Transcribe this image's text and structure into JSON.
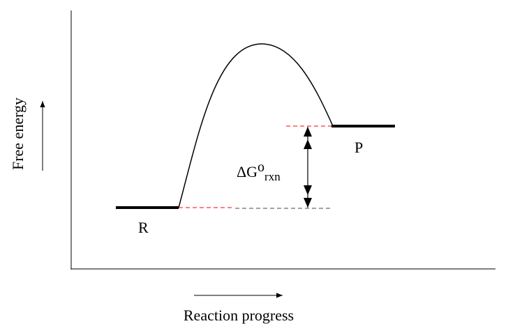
{
  "diagram": {
    "y_axis_label": "Free energy",
    "x_axis_label": "Reaction progress",
    "reactant_label": "R",
    "product_label": "P",
    "delta_g": {
      "main": "ΔG",
      "superscript": "o",
      "subscript": "rxn"
    },
    "colors": {
      "line": "#000000",
      "reference_dash": "#ff0000"
    }
  }
}
